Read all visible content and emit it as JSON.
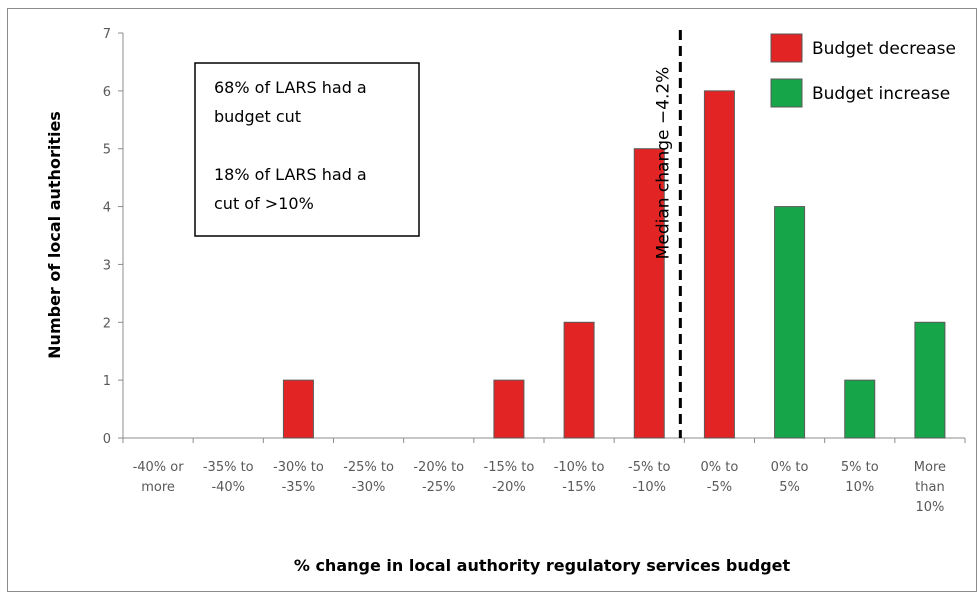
{
  "chart_data": {
    "type": "bar",
    "title": "",
    "xlabel": "% change in local authority regulatory services budget",
    "ylabel": "Number of local authorities",
    "ylim": [
      0,
      7
    ],
    "yticks": [
      0,
      1,
      2,
      3,
      4,
      5,
      6,
      7
    ],
    "grid": false,
    "categories": [
      [
        "-40% or",
        "more"
      ],
      [
        "-35% to",
        "-40%"
      ],
      [
        "-30% to",
        "-35%"
      ],
      [
        "-25% to",
        "-30%"
      ],
      [
        "-20% to",
        "-25%"
      ],
      [
        "-15% to",
        "-20%"
      ],
      [
        "-10% to",
        "-15%"
      ],
      [
        "-5% to",
        "-10%"
      ],
      [
        "0% to",
        "-5%"
      ],
      [
        "0% to",
        "5%"
      ],
      [
        "5% to",
        "10%"
      ],
      [
        "More",
        "than",
        "10%"
      ]
    ],
    "values": [
      0,
      0,
      1,
      0,
      0,
      1,
      2,
      5,
      6,
      4,
      1,
      2
    ],
    "series_of_bar": [
      "decrease",
      "decrease",
      "decrease",
      "decrease",
      "decrease",
      "decrease",
      "decrease",
      "decrease",
      "decrease",
      "increase",
      "increase",
      "increase"
    ],
    "colors": {
      "decrease": "#e32424",
      "increase": "#17a54a"
    },
    "legend": {
      "position": "top-right",
      "items": [
        {
          "key": "decrease",
          "label": "Budget decrease"
        },
        {
          "key": "increase",
          "label": "Budget increase"
        }
      ]
    },
    "annotations": {
      "median_line_label": "Median change −4.2%",
      "note_lines": [
        "68% of LARS had a",
        "budget cut",
        "",
        "18% of LARS had a",
        "cut of >10%"
      ]
    }
  }
}
